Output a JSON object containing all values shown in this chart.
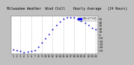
{
  "title": "Milwaukee Weather  Wind Chill    Hourly Average   (24 Hours)",
  "hours": [
    1,
    2,
    3,
    4,
    5,
    6,
    7,
    8,
    9,
    10,
    11,
    12,
    13,
    14,
    15,
    16,
    17,
    18,
    19,
    20,
    21,
    22,
    23,
    24
  ],
  "wind_chill": [
    -46,
    -50,
    -52,
    -55,
    -54,
    -52,
    -48,
    -38,
    -25,
    -12,
    2,
    18,
    32,
    42,
    50,
    55,
    56,
    55,
    50,
    45,
    38,
    30,
    22,
    18
  ],
  "line_color": "#0000cc",
  "bg_color": "#c0c0c0",
  "plot_bg": "#ffffff",
  "grid_color": "#808080",
  "ylim": [
    -60,
    60
  ],
  "ytick_vals": [
    -50,
    -40,
    -30,
    -20,
    -10,
    0,
    10,
    20,
    30,
    40,
    50
  ],
  "ytick_labels": [
    "-50",
    "-40",
    "-30",
    "-20",
    "-10",
    "0",
    "10",
    "20",
    "30",
    "40",
    "50"
  ],
  "xtick_positions": [
    1,
    2,
    3,
    4,
    5,
    6,
    7,
    8,
    9,
    10,
    11,
    12,
    13,
    14,
    15,
    16,
    17,
    18,
    19,
    20,
    21,
    22,
    23,
    24
  ],
  "grid_x": [
    3,
    6,
    9,
    12,
    15,
    18,
    21,
    24
  ],
  "legend_label": "Wind Chill",
  "legend_color": "#0000ff",
  "title_fontsize": 3.5,
  "tick_fontsize": 2.8
}
